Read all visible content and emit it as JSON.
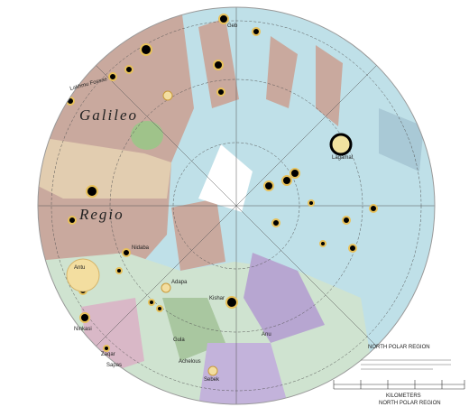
{
  "map": {
    "regions": [
      "Galileo",
      "Regio"
    ],
    "features": [
      "Geb",
      "Lakhmu Fossae",
      "Lagamal",
      "Antu",
      "Ninkasi",
      "Adapa",
      "Kishar",
      "Gula",
      "Achelous",
      "Sebek",
      "Zaqar",
      "Sapas",
      "Anu",
      "Nidaba"
    ],
    "legend": {
      "title": "NORTH POLAR REGION",
      "unit": "KILOMETERS",
      "caption": "NORTH POLAR REGION"
    }
  }
}
